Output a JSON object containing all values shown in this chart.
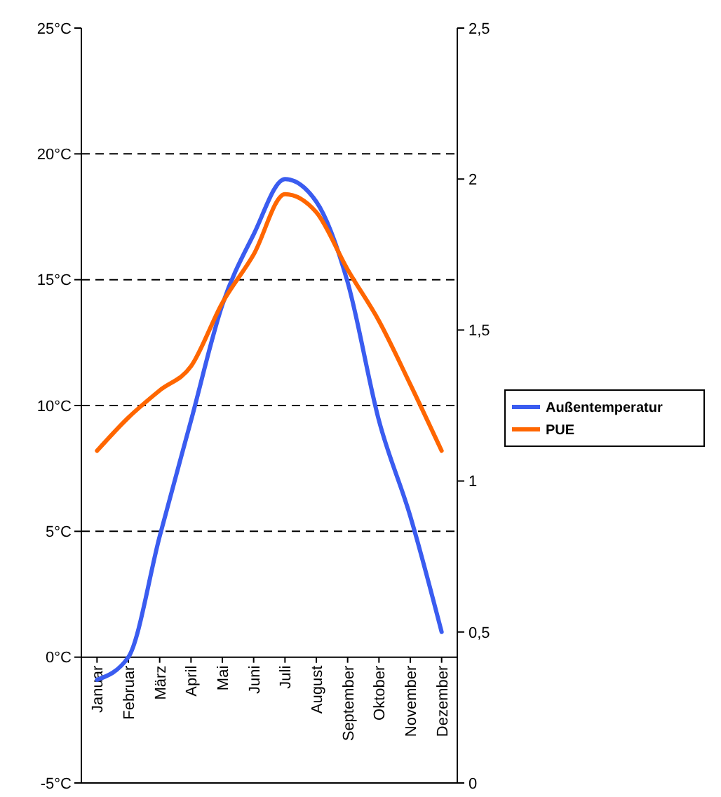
{
  "chart_data": {
    "type": "line",
    "categories": [
      "Januar",
      "Februar",
      "März",
      "April",
      "Mai",
      "Juni",
      "Juli",
      "August",
      "September",
      "Oktober",
      "November",
      "Dezember"
    ],
    "series": [
      {
        "name": "Außentemperatur",
        "color": "#3a5cf0",
        "values": [
          -0.9,
          0,
          4.8,
          9.4,
          14,
          16.8,
          19,
          18.1,
          14.9,
          9.4,
          5.6,
          1
        ]
      },
      {
        "name": "PUE",
        "color": "#ff6600",
        "axis": "y2",
        "values": [
          1.1,
          1.21,
          1.3,
          1.38,
          1.59,
          1.75,
          1.95,
          1.89,
          1.7,
          1.53,
          1.32,
          1.1
        ]
      }
    ],
    "ylim": [
      -5,
      25
    ],
    "yticks": [
      {
        "value": -5,
        "label": "-5°C"
      },
      {
        "value": 0,
        "label": "0°C"
      },
      {
        "value": 5,
        "label": "5°C"
      },
      {
        "value": 10,
        "label": "10°C"
      },
      {
        "value": 15,
        "label": "15°C"
      },
      {
        "value": 20,
        "label": "20°C"
      },
      {
        "value": 25,
        "label": "25°C"
      }
    ],
    "y2lim": [
      0,
      2.5
    ],
    "y2ticks": [
      0,
      {
        "value": 0.5,
        "label": "0,5"
      },
      1,
      {
        "value": 1.5,
        "label": "1,5"
      },
      2,
      {
        "value": 2.5,
        "label": "2,5"
      }
    ],
    "grid": "y",
    "legend": "right",
    "line_style": "solid",
    "marker": "none"
  }
}
